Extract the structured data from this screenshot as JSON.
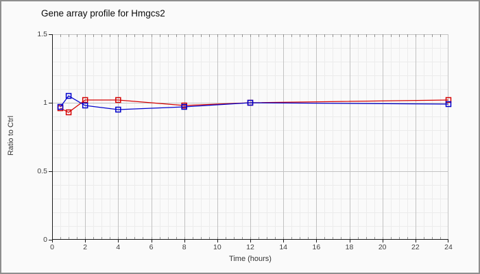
{
  "chart_data": {
    "type": "line",
    "title": "Gene array profile for Hmgcs2",
    "xlabel": "Time (hours)",
    "ylabel": "Ratio to Ctrl",
    "xlim": [
      0,
      24
    ],
    "ylim": [
      0,
      1.5
    ],
    "x_ticks": [
      0,
      2,
      4,
      6,
      8,
      10,
      12,
      14,
      16,
      18,
      20,
      22,
      24
    ],
    "y_ticks": [
      0,
      0.5,
      1,
      1.5
    ],
    "x_minor_step": 0.5,
    "y_minor_step": 0.1,
    "grid": true,
    "legend_position": "none",
    "marker": "open-square",
    "x": [
      0.5,
      1,
      2,
      4,
      8,
      12,
      24
    ],
    "series": [
      {
        "name": "red-series",
        "color": "#d40000",
        "values": [
          0.96,
          0.93,
          1.02,
          1.02,
          0.98,
          1.0,
          1.02
        ]
      },
      {
        "name": "blue-series",
        "color": "#0000cc",
        "values": [
          0.97,
          1.05,
          0.98,
          0.95,
          0.97,
          1.0,
          0.99
        ]
      }
    ]
  },
  "colors": {
    "window_bg": "#fafafa",
    "window_border": "#8e8e8e",
    "grid_major": "#c2c2c2",
    "grid_minor": "#ececec",
    "axis": "#1a1a1a",
    "inner_tick": "#909090",
    "tick_text": "#3c3c3c"
  }
}
